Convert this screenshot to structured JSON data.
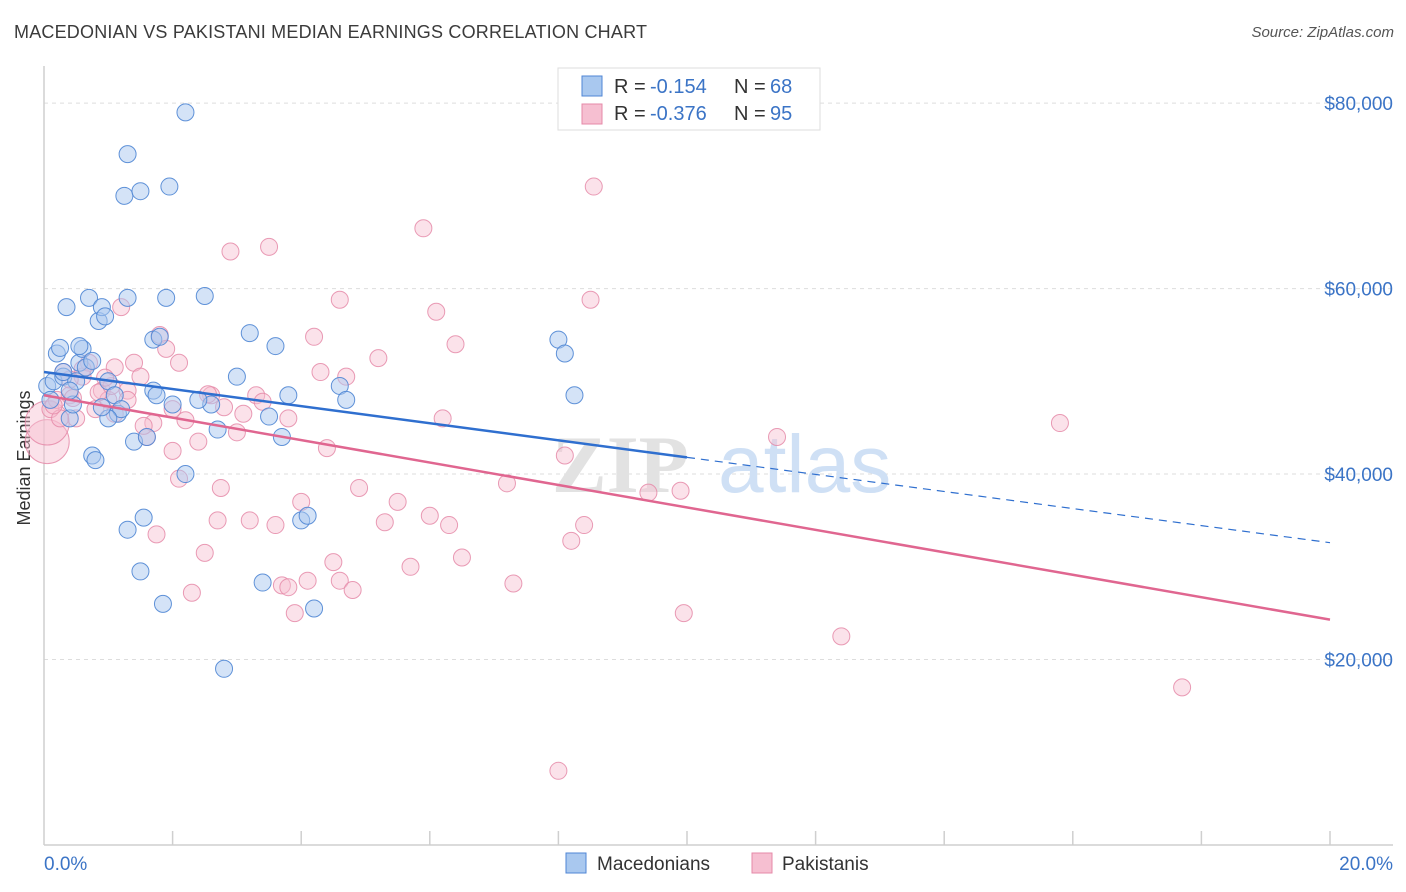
{
  "header": {
    "title": "MACEDONIAN VS PAKISTANI MEDIAN EARNINGS CORRELATION CHART",
    "source": "Source: ZipAtlas.com"
  },
  "watermark": {
    "zip": "ZIP",
    "atlas": "atlas"
  },
  "colors": {
    "macedonians_fill": "#a9c8ef",
    "macedonians_stroke": "#4f86d4",
    "macedonians_line": "#2f6fcf",
    "pakistanis_fill": "#f6bfd1",
    "pakistanis_stroke": "#e58aa8",
    "pakistanis_line": "#e06690",
    "tick_label": "#3b74c6",
    "grid": "#dddddd"
  },
  "legend": {
    "r_label": "R =",
    "n_label": "N =",
    "rows": [
      {
        "name": "Macedonians",
        "r": "-0.154",
        "n": "68"
      },
      {
        "name": "Pakistanis",
        "r": "-0.376",
        "n": "95"
      }
    ]
  },
  "chart_data": {
    "type": "scatter",
    "title": "MACEDONIAN VS PAKISTANI MEDIAN EARNINGS CORRELATION CHART",
    "xlabel": "",
    "ylabel": "Median Earnings",
    "xlim": [
      0,
      20
    ],
    "ylim": [
      0,
      84000
    ],
    "x_tick_labels": [
      "0.0%",
      "20.0%"
    ],
    "y_ticks": [
      20000,
      40000,
      60000,
      80000
    ],
    "y_tick_labels": [
      "$20,000",
      "$40,000",
      "$60,000",
      "$80,000"
    ],
    "grid": true,
    "series": [
      {
        "name": "Macedonians",
        "trend": {
          "x_solid": [
            0,
            10
          ],
          "y_solid": [
            51000,
            41800
          ],
          "x_dashed": [
            10,
            20
          ],
          "y_dashed": [
            41800,
            32600
          ]
        },
        "points": [
          [
            0.05,
            49.5
          ],
          [
            0.1,
            48
          ],
          [
            0.15,
            50
          ],
          [
            0.2,
            53
          ],
          [
            0.25,
            53.6
          ],
          [
            0.3,
            50.5
          ],
          [
            0.35,
            58
          ],
          [
            0.4,
            46
          ],
          [
            0.45,
            47.5
          ],
          [
            0.5,
            50
          ],
          [
            0.55,
            52
          ],
          [
            0.6,
            53.5
          ],
          [
            0.7,
            59
          ],
          [
            0.75,
            42
          ],
          [
            0.8,
            41.5
          ],
          [
            0.85,
            56.5
          ],
          [
            0.9,
            58
          ],
          [
            0.95,
            57
          ],
          [
            1.0,
            50
          ],
          [
            1.1,
            48.5
          ],
          [
            1.15,
            46.5
          ],
          [
            1.2,
            47
          ],
          [
            1.3,
            59
          ],
          [
            1.3,
            34
          ],
          [
            1.4,
            43.5
          ],
          [
            1.5,
            29.5
          ],
          [
            1.55,
            35.3
          ],
          [
            1.6,
            44
          ],
          [
            1.7,
            49
          ],
          [
            1.7,
            54.5
          ],
          [
            1.75,
            48.5
          ],
          [
            1.8,
            54.8
          ],
          [
            1.85,
            26
          ],
          [
            1.9,
            59
          ],
          [
            1.95,
            71
          ],
          [
            2.0,
            47.5
          ],
          [
            2.2,
            40
          ],
          [
            2.5,
            59.2
          ],
          [
            2.6,
            47.5
          ],
          [
            2.7,
            44.8
          ],
          [
            2.8,
            19
          ],
          [
            3.0,
            50.5
          ],
          [
            3.2,
            55.2
          ],
          [
            3.4,
            28.3
          ],
          [
            3.5,
            46.2
          ],
          [
            3.6,
            53.8
          ],
          [
            3.7,
            44
          ],
          [
            3.8,
            48.5
          ],
          [
            4.0,
            35
          ],
          [
            4.1,
            35.5
          ],
          [
            4.2,
            25.5
          ],
          [
            4.6,
            49.5
          ],
          [
            4.7,
            48
          ],
          [
            1.25,
            70
          ],
          [
            1.5,
            70.5
          ],
          [
            1.3,
            74.5
          ],
          [
            2.2,
            79
          ],
          [
            8.0,
            54.5
          ],
          [
            8.1,
            53
          ],
          [
            8.25,
            48.5
          ],
          [
            0.65,
            51.5
          ],
          [
            0.4,
            49
          ],
          [
            0.3,
            51
          ],
          [
            1.0,
            46
          ],
          [
            2.4,
            48
          ],
          [
            0.9,
            47.2
          ],
          [
            0.55,
            53.8
          ],
          [
            0.75,
            52.2
          ]
        ]
      },
      {
        "name": "Pakistanis",
        "trend": {
          "x": [
            0,
            20
          ],
          "y": [
            48500,
            24300
          ]
        },
        "points": [
          [
            0.05,
            43.5
          ],
          [
            0.05,
            45.5
          ],
          [
            0.1,
            47
          ],
          [
            0.2,
            48
          ],
          [
            0.3,
            51
          ],
          [
            0.4,
            48.5
          ],
          [
            0.5,
            46
          ],
          [
            0.6,
            50.5
          ],
          [
            0.7,
            52
          ],
          [
            0.8,
            47
          ],
          [
            0.9,
            49
          ],
          [
            1.0,
            48
          ],
          [
            1.1,
            46.5
          ],
          [
            1.1,
            51.5
          ],
          [
            1.2,
            58
          ],
          [
            1.3,
            49
          ],
          [
            1.4,
            52
          ],
          [
            1.5,
            50.5
          ],
          [
            1.6,
            44
          ],
          [
            1.7,
            45.5
          ],
          [
            1.75,
            33.5
          ],
          [
            1.8,
            55
          ],
          [
            1.9,
            53.5
          ],
          [
            2.0,
            47
          ],
          [
            2.0,
            42.5
          ],
          [
            2.1,
            52
          ],
          [
            2.1,
            39.5
          ],
          [
            2.2,
            45.8
          ],
          [
            2.3,
            27.2
          ],
          [
            2.4,
            43.5
          ],
          [
            2.5,
            31.5
          ],
          [
            2.6,
            48.5
          ],
          [
            2.7,
            35
          ],
          [
            2.75,
            38.5
          ],
          [
            2.8,
            47.2
          ],
          [
            2.9,
            64
          ],
          [
            3.0,
            44.5
          ],
          [
            3.1,
            46.5
          ],
          [
            3.2,
            35
          ],
          [
            3.3,
            48.5
          ],
          [
            3.4,
            47.8
          ],
          [
            3.5,
            64.5
          ],
          [
            3.6,
            34.5
          ],
          [
            3.7,
            28
          ],
          [
            3.8,
            46
          ],
          [
            3.8,
            27.8
          ],
          [
            3.9,
            25
          ],
          [
            4.0,
            37
          ],
          [
            4.1,
            28.5
          ],
          [
            4.2,
            54.8
          ],
          [
            4.3,
            51
          ],
          [
            4.4,
            42.8
          ],
          [
            4.5,
            30.5
          ],
          [
            4.6,
            58.8
          ],
          [
            4.6,
            28.5
          ],
          [
            4.7,
            50.5
          ],
          [
            4.8,
            27.5
          ],
          [
            4.9,
            38.5
          ],
          [
            5.2,
            52.5
          ],
          [
            5.3,
            34.8
          ],
          [
            5.5,
            37
          ],
          [
            5.7,
            30
          ],
          [
            5.9,
            66.5
          ],
          [
            6.0,
            35.5
          ],
          [
            6.1,
            57.5
          ],
          [
            6.2,
            46
          ],
          [
            6.3,
            34.5
          ],
          [
            6.4,
            54
          ],
          [
            6.5,
            31
          ],
          [
            7.2,
            39
          ],
          [
            7.3,
            28.2
          ],
          [
            8.0,
            8
          ],
          [
            8.1,
            42
          ],
          [
            8.2,
            32.8
          ],
          [
            8.4,
            34.5
          ],
          [
            8.5,
            58.8
          ],
          [
            8.55,
            71
          ],
          [
            9.4,
            38
          ],
          [
            9.9,
            38.2
          ],
          [
            9.95,
            25
          ],
          [
            11.4,
            44
          ],
          [
            12.4,
            22.5
          ],
          [
            15.8,
            45.5
          ],
          [
            17.7,
            17
          ],
          [
            0.4,
            50.2
          ],
          [
            0.6,
            51.3
          ],
          [
            0.85,
            48.8
          ],
          [
            1.05,
            49.5
          ],
          [
            1.3,
            48
          ],
          [
            0.25,
            46
          ],
          [
            0.45,
            48.2
          ],
          [
            0.15,
            47.4
          ],
          [
            1.55,
            45.2
          ],
          [
            2.55,
            48.6
          ],
          [
            0.95,
            50.4
          ]
        ]
      }
    ]
  },
  "bottom_legend": [
    {
      "label": "Macedonians"
    },
    {
      "label": "Pakistanis"
    }
  ]
}
